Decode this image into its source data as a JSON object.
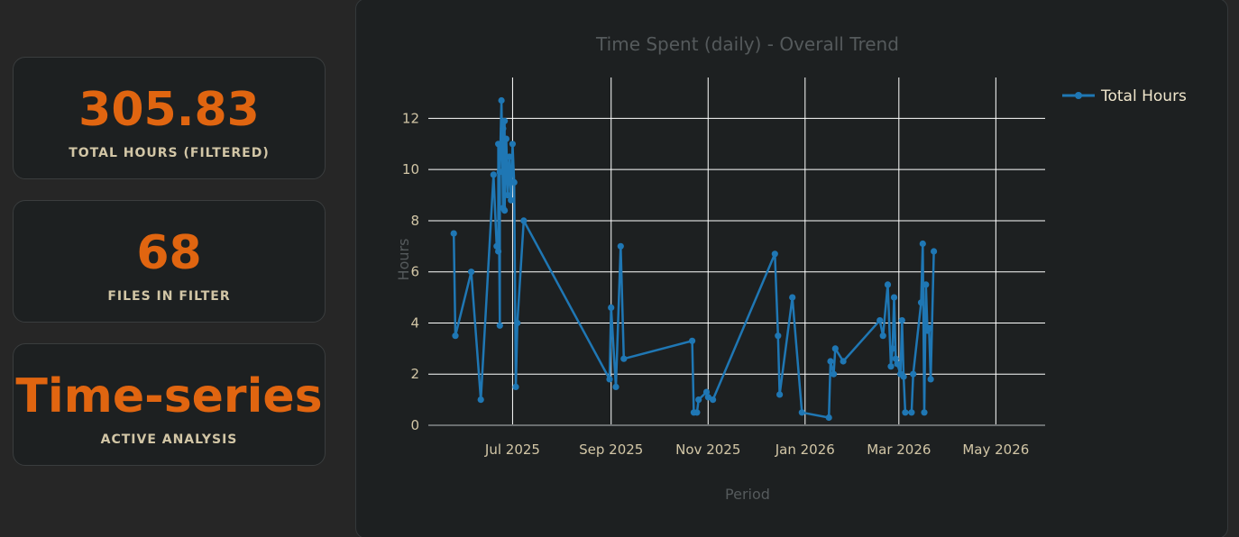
{
  "metrics": [
    {
      "value": "305.83",
      "label": "TOTAL HOURS (FILTERED)"
    },
    {
      "value": "68",
      "label": "FILES IN FILTER"
    },
    {
      "value": "Time-series",
      "label": "ACTIVE ANALYSIS"
    }
  ],
  "colors": {
    "accent": "#e06510",
    "series": "#1f77b4",
    "grid": "#ffffff",
    "tick": "#d2c6a6",
    "title": "#555a5c"
  },
  "chart_data": {
    "type": "line",
    "title": "Time Spent (daily) - Overall Trend",
    "xlabel": "Period",
    "ylabel": "Hours",
    "grid": true,
    "legend_position": "top-right",
    "xlim": [
      "2025-05-09",
      "2026-06-01"
    ],
    "ylim": [
      0,
      13.6
    ],
    "x_ticks": [
      "2025-07-01",
      "2025-09-01",
      "2025-11-01",
      "2026-01-01",
      "2026-03-01",
      "2026-05-01"
    ],
    "x_tick_labels": [
      "Jul 2025",
      "Sep 2025",
      "Nov 2025",
      "Jan 2026",
      "Mar 2026",
      "May 2026"
    ],
    "y_ticks": [
      0,
      2,
      4,
      6,
      8,
      10,
      12
    ],
    "y_tick_labels": [
      "0",
      "2",
      "4",
      "6",
      "8",
      "10",
      "12"
    ],
    "series": [
      {
        "name": "Total Hours",
        "points": [
          [
            "2025-05-25",
            7.5
          ],
          [
            "2025-05-26",
            3.5
          ],
          [
            "2025-06-05",
            6.0
          ],
          [
            "2025-06-11",
            1.0
          ],
          [
            "2025-06-19",
            9.8
          ],
          [
            "2025-06-21",
            7.0
          ],
          [
            "2025-06-22",
            6.8
          ],
          [
            "2025-06-22",
            11.0
          ],
          [
            "2025-06-23",
            3.9
          ],
          [
            "2025-06-23",
            9.9
          ],
          [
            "2025-06-24",
            12.7
          ],
          [
            "2025-06-25",
            8.5
          ],
          [
            "2025-06-25",
            11.6
          ],
          [
            "2025-06-26",
            11.9
          ],
          [
            "2025-06-26",
            8.4
          ],
          [
            "2025-06-27",
            11.2
          ],
          [
            "2025-06-28",
            9.0
          ],
          [
            "2025-06-29",
            10.5
          ],
          [
            "2025-06-30",
            8.8
          ],
          [
            "2025-07-01",
            11.0
          ],
          [
            "2025-07-02",
            9.5
          ],
          [
            "2025-07-03",
            1.5
          ],
          [
            "2025-07-04",
            4.0
          ],
          [
            "2025-07-08",
            8.0
          ],
          [
            "2025-08-31",
            1.8
          ],
          [
            "2025-09-01",
            4.6
          ],
          [
            "2025-09-04",
            1.5
          ],
          [
            "2025-09-07",
            7.0
          ],
          [
            "2025-09-09",
            2.6
          ],
          [
            "2025-10-22",
            3.3
          ],
          [
            "2025-10-23",
            0.5
          ],
          [
            "2025-10-25",
            0.5
          ],
          [
            "2025-10-26",
            1.0
          ],
          [
            "2025-10-31",
            1.3
          ],
          [
            "2025-11-01",
            1.1
          ],
          [
            "2025-11-04",
            1.0
          ],
          [
            "2025-12-13",
            6.7
          ],
          [
            "2025-12-15",
            3.5
          ],
          [
            "2025-12-16",
            1.2
          ],
          [
            "2025-12-24",
            5.0
          ],
          [
            "2025-12-30",
            0.5
          ],
          [
            "2026-01-16",
            0.3
          ],
          [
            "2026-01-17",
            2.5
          ],
          [
            "2026-01-19",
            2.0
          ],
          [
            "2026-01-20",
            3.0
          ],
          [
            "2026-01-25",
            2.5
          ],
          [
            "2026-02-17",
            4.1
          ],
          [
            "2026-02-19",
            3.5
          ],
          [
            "2026-02-22",
            5.5
          ],
          [
            "2026-02-24",
            2.3
          ],
          [
            "2026-02-25",
            3.0
          ],
          [
            "2026-02-26",
            5.0
          ],
          [
            "2026-02-27",
            2.6
          ],
          [
            "2026-02-28",
            2.4
          ],
          [
            "2026-03-02",
            2.0
          ],
          [
            "2026-03-03",
            4.1
          ],
          [
            "2026-03-04",
            1.9
          ],
          [
            "2026-03-05",
            0.5
          ],
          [
            "2026-03-09",
            0.5
          ],
          [
            "2026-03-10",
            2.0
          ],
          [
            "2026-03-15",
            4.8
          ],
          [
            "2026-03-16",
            7.1
          ],
          [
            "2026-03-17",
            0.5
          ],
          [
            "2026-03-18",
            5.5
          ],
          [
            "2026-03-19",
            3.7
          ],
          [
            "2026-03-20",
            3.8
          ],
          [
            "2026-03-21",
            1.8
          ],
          [
            "2026-03-23",
            6.8
          ]
        ]
      }
    ]
  }
}
